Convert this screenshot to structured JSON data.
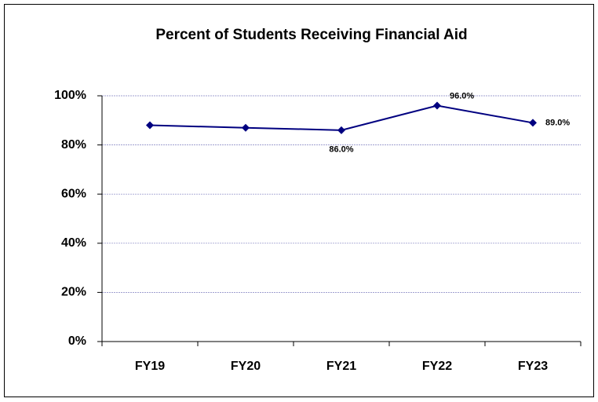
{
  "chart_data": {
    "type": "line",
    "title": "Percent of Students Receiving Financial Aid",
    "categories": [
      "FY19",
      "FY20",
      "FY21",
      "FY22",
      "FY23"
    ],
    "series": [
      {
        "name": "Percent of Students Receiving Financial Aid",
        "color": "#000080",
        "values": [
          88,
          87,
          86,
          96,
          89
        ],
        "value_labels": [
          null,
          null,
          "86.0%",
          "96.0%",
          "89.0%"
        ]
      }
    ],
    "ylim": [
      0,
      100
    ],
    "yticks": [
      {
        "value": 0,
        "label": "0%"
      },
      {
        "value": 20,
        "label": "20%"
      },
      {
        "value": 40,
        "label": "40%"
      },
      {
        "value": 60,
        "label": "60%"
      },
      {
        "value": 80,
        "label": "80%"
      },
      {
        "value": 100,
        "label": "100%"
      }
    ],
    "grid": true
  }
}
